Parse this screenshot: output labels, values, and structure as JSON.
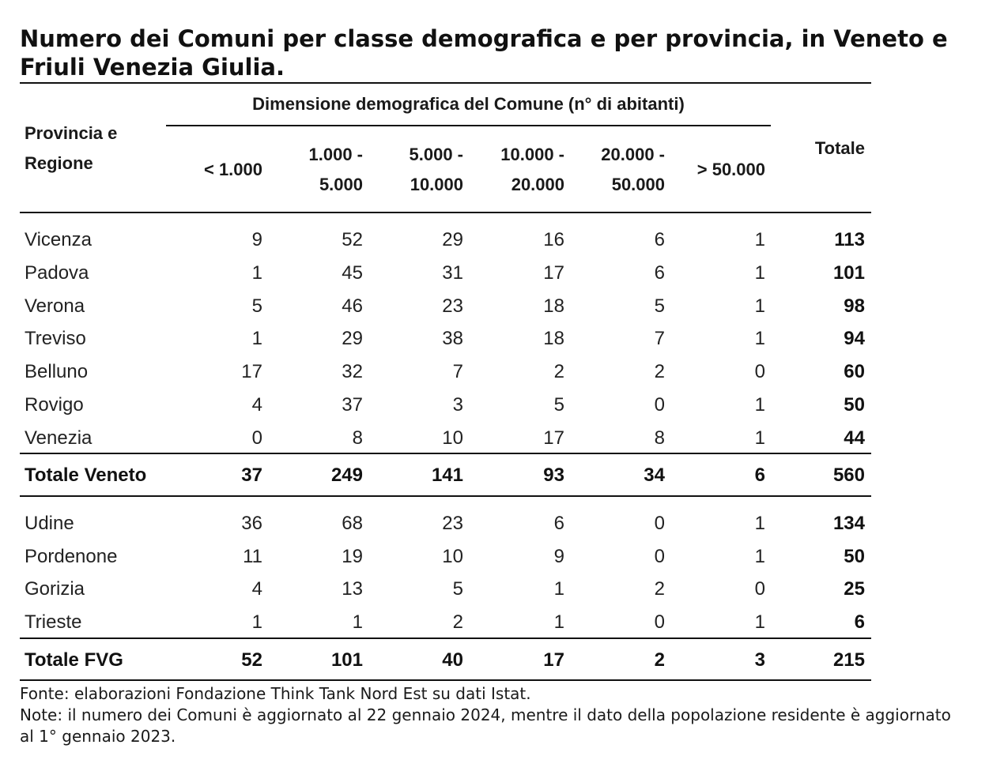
{
  "title": "Numero dei Comuni per classe demografica e per provincia, in Veneto e Friuli Venezia Giulia.",
  "table": {
    "row_header": [
      "Provincia e",
      "Regione"
    ],
    "group_header": "Dimensione demografica del Comune (n° di abitanti)",
    "columns": [
      [
        "< 1.000"
      ],
      [
        "1.000 -",
        "5.000"
      ],
      [
        "5.000 -",
        "10.000"
      ],
      [
        "10.000 -",
        "20.000"
      ],
      [
        "20.000 -",
        "50.000"
      ],
      [
        "> 50.000"
      ]
    ],
    "total_header": "Totale",
    "veneto_rows": [
      {
        "name": "Vicenza",
        "values": [
          "9",
          "52",
          "29",
          "16",
          "6",
          "1"
        ],
        "total": "113"
      },
      {
        "name": "Padova",
        "values": [
          "1",
          "45",
          "31",
          "17",
          "6",
          "1"
        ],
        "total": "101"
      },
      {
        "name": "Verona",
        "values": [
          "5",
          "46",
          "23",
          "18",
          "5",
          "1"
        ],
        "total": "98"
      },
      {
        "name": "Treviso",
        "values": [
          "1",
          "29",
          "38",
          "18",
          "7",
          "1"
        ],
        "total": "94"
      },
      {
        "name": "Belluno",
        "values": [
          "17",
          "32",
          "7",
          "2",
          "2",
          "0"
        ],
        "total": "60"
      },
      {
        "name": "Rovigo",
        "values": [
          "4",
          "37",
          "3",
          "5",
          "0",
          "1"
        ],
        "total": "50"
      },
      {
        "name": "Venezia",
        "values": [
          "0",
          "8",
          "10",
          "17",
          "8",
          "1"
        ],
        "total": "44"
      }
    ],
    "veneto_total": {
      "name": "Totale Veneto",
      "values": [
        "37",
        "249",
        "141",
        "93",
        "34",
        "6"
      ],
      "total": "560"
    },
    "fvg_rows": [
      {
        "name": "Udine",
        "values": [
          "36",
          "68",
          "23",
          "6",
          "0",
          "1"
        ],
        "total": "134"
      },
      {
        "name": "Pordenone",
        "values": [
          "11",
          "19",
          "10",
          "9",
          "0",
          "1"
        ],
        "total": "50"
      },
      {
        "name": "Gorizia",
        "values": [
          "4",
          "13",
          "5",
          "1",
          "2",
          "0"
        ],
        "total": "25"
      },
      {
        "name": "Trieste",
        "values": [
          "1",
          "1",
          "2",
          "1",
          "0",
          "1"
        ],
        "total": "6"
      }
    ],
    "fvg_total": {
      "name": "Totale FVG",
      "values": [
        "52",
        "101",
        "40",
        "17",
        "2",
        "3"
      ],
      "total": "215"
    }
  },
  "source_note": "Fonte: elaborazioni Fondazione Think Tank Nord Est su dati Istat.",
  "note": "Note: il numero dei Comuni è aggiornato al 22 gennaio 2024, mentre il dato della popolazione residente è aggiornato al 1° gennaio 2023."
}
